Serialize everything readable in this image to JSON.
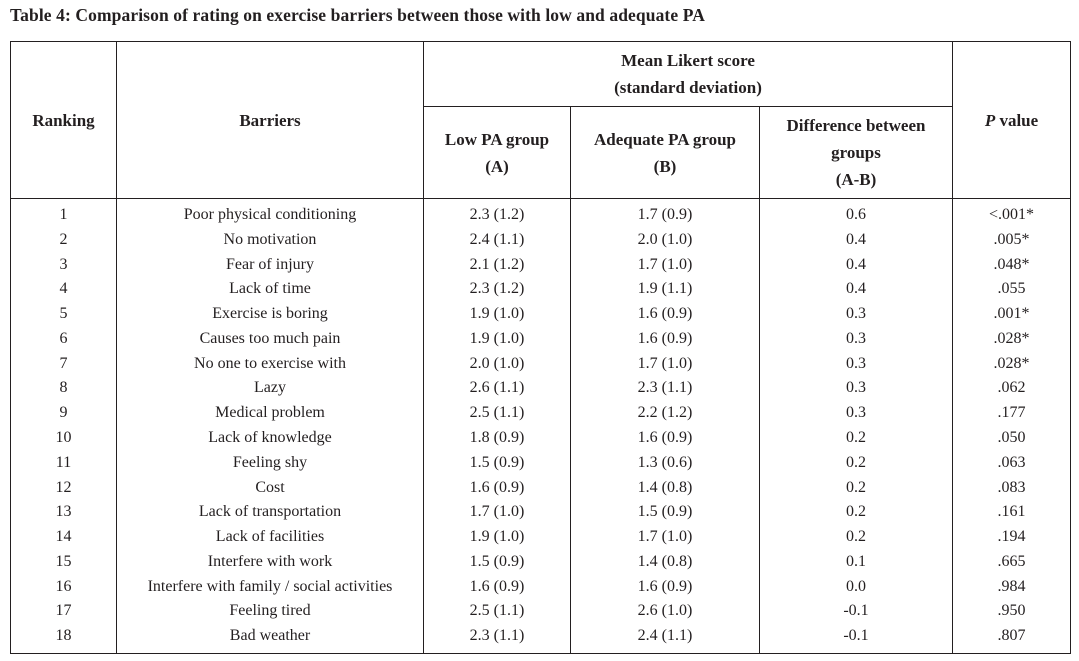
{
  "caption": "Table 4: Comparison of rating on exercise barriers between those with low and adequate PA",
  "headers": {
    "ranking": "Ranking",
    "barriers": "Barriers",
    "mean_group_line1": "Mean Likert score",
    "mean_group_line2": "(standard deviation)",
    "low_line1": "Low PA group",
    "low_line2": "(A)",
    "adequate_line1": "Adequate PA group",
    "adequate_line2": "(B)",
    "diff_line1": "Difference between",
    "diff_line2": "groups",
    "diff_line3": "(A-B)",
    "p_italic": "P",
    "p_rest": " value"
  },
  "rows": [
    {
      "rank": "1",
      "barrier": "Poor physical conditioning",
      "low": "2.3 (1.2)",
      "adequate": "1.7 (0.9)",
      "diff": "0.6",
      "p": "<.001*"
    },
    {
      "rank": "2",
      "barrier": "No motivation",
      "low": "2.4 (1.1)",
      "adequate": "2.0 (1.0)",
      "diff": "0.4",
      "p": ".005*"
    },
    {
      "rank": "3",
      "barrier": "Fear of injury",
      "low": "2.1 (1.2)",
      "adequate": "1.7 (1.0)",
      "diff": "0.4",
      "p": ".048*"
    },
    {
      "rank": "4",
      "barrier": "Lack of time",
      "low": "2.3 (1.2)",
      "adequate": "1.9 (1.1)",
      "diff": "0.4",
      "p": ".055"
    },
    {
      "rank": "5",
      "barrier": "Exercise is boring",
      "low": "1.9 (1.0)",
      "adequate": "1.6 (0.9)",
      "diff": "0.3",
      "p": ".001*"
    },
    {
      "rank": "6",
      "barrier": "Causes too much pain",
      "low": "1.9 (1.0)",
      "adequate": "1.6 (0.9)",
      "diff": "0.3",
      "p": ".028*"
    },
    {
      "rank": "7",
      "barrier": "No one to exercise with",
      "low": "2.0 (1.0)",
      "adequate": "1.7 (1.0)",
      "diff": "0.3",
      "p": ".028*"
    },
    {
      "rank": "8",
      "barrier": "Lazy",
      "low": "2.6 (1.1)",
      "adequate": "2.3 (1.1)",
      "diff": "0.3",
      "p": ".062"
    },
    {
      "rank": "9",
      "barrier": "Medical problem",
      "low": "2.5 (1.1)",
      "adequate": "2.2 (1.2)",
      "diff": "0.3",
      "p": ".177"
    },
    {
      "rank": "10",
      "barrier": "Lack of knowledge",
      "low": "1.8 (0.9)",
      "adequate": "1.6 (0.9)",
      "diff": "0.2",
      "p": ".050"
    },
    {
      "rank": "11",
      "barrier": "Feeling shy",
      "low": "1.5 (0.9)",
      "adequate": "1.3 (0.6)",
      "diff": "0.2",
      "p": ".063"
    },
    {
      "rank": "12",
      "barrier": "Cost",
      "low": "1.6 (0.9)",
      "adequate": "1.4 (0.8)",
      "diff": "0.2",
      "p": ".083"
    },
    {
      "rank": "13",
      "barrier": "Lack of transportation",
      "low": "1.7 (1.0)",
      "adequate": "1.5 (0.9)",
      "diff": "0.2",
      "p": ".161"
    },
    {
      "rank": "14",
      "barrier": "Lack of facilities",
      "low": "1.9 (1.0)",
      "adequate": "1.7 (1.0)",
      "diff": "0.2",
      "p": ".194"
    },
    {
      "rank": "15",
      "barrier": "Interfere with work",
      "low": "1.5 (0.9)",
      "adequate": "1.4 (0.8)",
      "diff": "0.1",
      "p": ".665"
    },
    {
      "rank": "16",
      "barrier": "Interfere with family / social activities",
      "low": "1.6 (0.9)",
      "adequate": "1.6 (0.9)",
      "diff": "0.0",
      "p": ".984"
    },
    {
      "rank": "17",
      "barrier": "Feeling tired",
      "low": "2.5 (1.1)",
      "adequate": "2.6 (1.0)",
      "diff": "-0.1",
      "p": ".950"
    },
    {
      "rank": "18",
      "barrier": "Bad weather",
      "low": "2.3 (1.1)",
      "adequate": "2.4 (1.1)",
      "diff": "-0.1",
      "p": ".807"
    }
  ]
}
